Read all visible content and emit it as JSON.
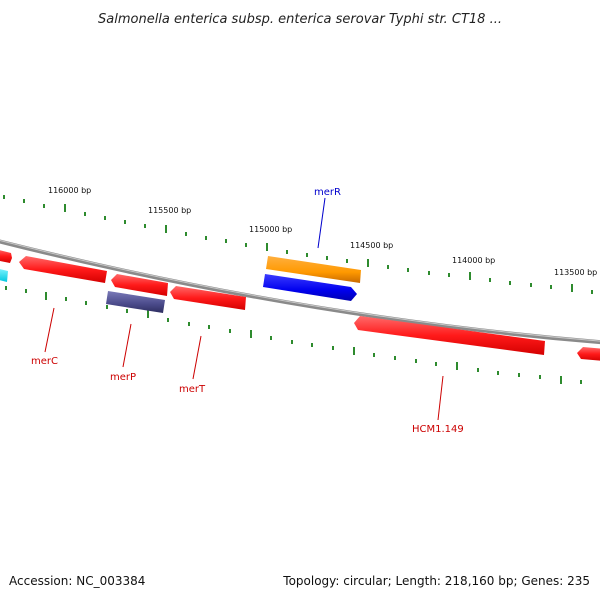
{
  "title": "Salmonella enterica subsp. enterica serovar Typhi str. CT18 ...",
  "footer": {
    "accession": "Accession: NC_003384",
    "summary": "Topology: circular; Length: 218,160 bp; Genes: 235"
  },
  "colors": {
    "backbone": "#8a8a8a",
    "tick": "#2e8b2e",
    "label_red": "#cc0000",
    "label_blue": "#0000cc",
    "gene_red": "#ff1a1a",
    "gene_blue": "#0000ee",
    "gene_orange": "#ff9900",
    "gene_slate": "#4a4a8a",
    "gene_cyan": "#00e5ff"
  },
  "scale_labels": [
    "116000 bp",
    "115500 bp",
    "115000 bp",
    "114500 bp",
    "114000 bp",
    "113500 bp"
  ],
  "gene_labels": {
    "merR": "merR",
    "merC": "merC",
    "merP": "merP",
    "merT": "merT",
    "HCM1_149": "HCM1.149"
  }
}
